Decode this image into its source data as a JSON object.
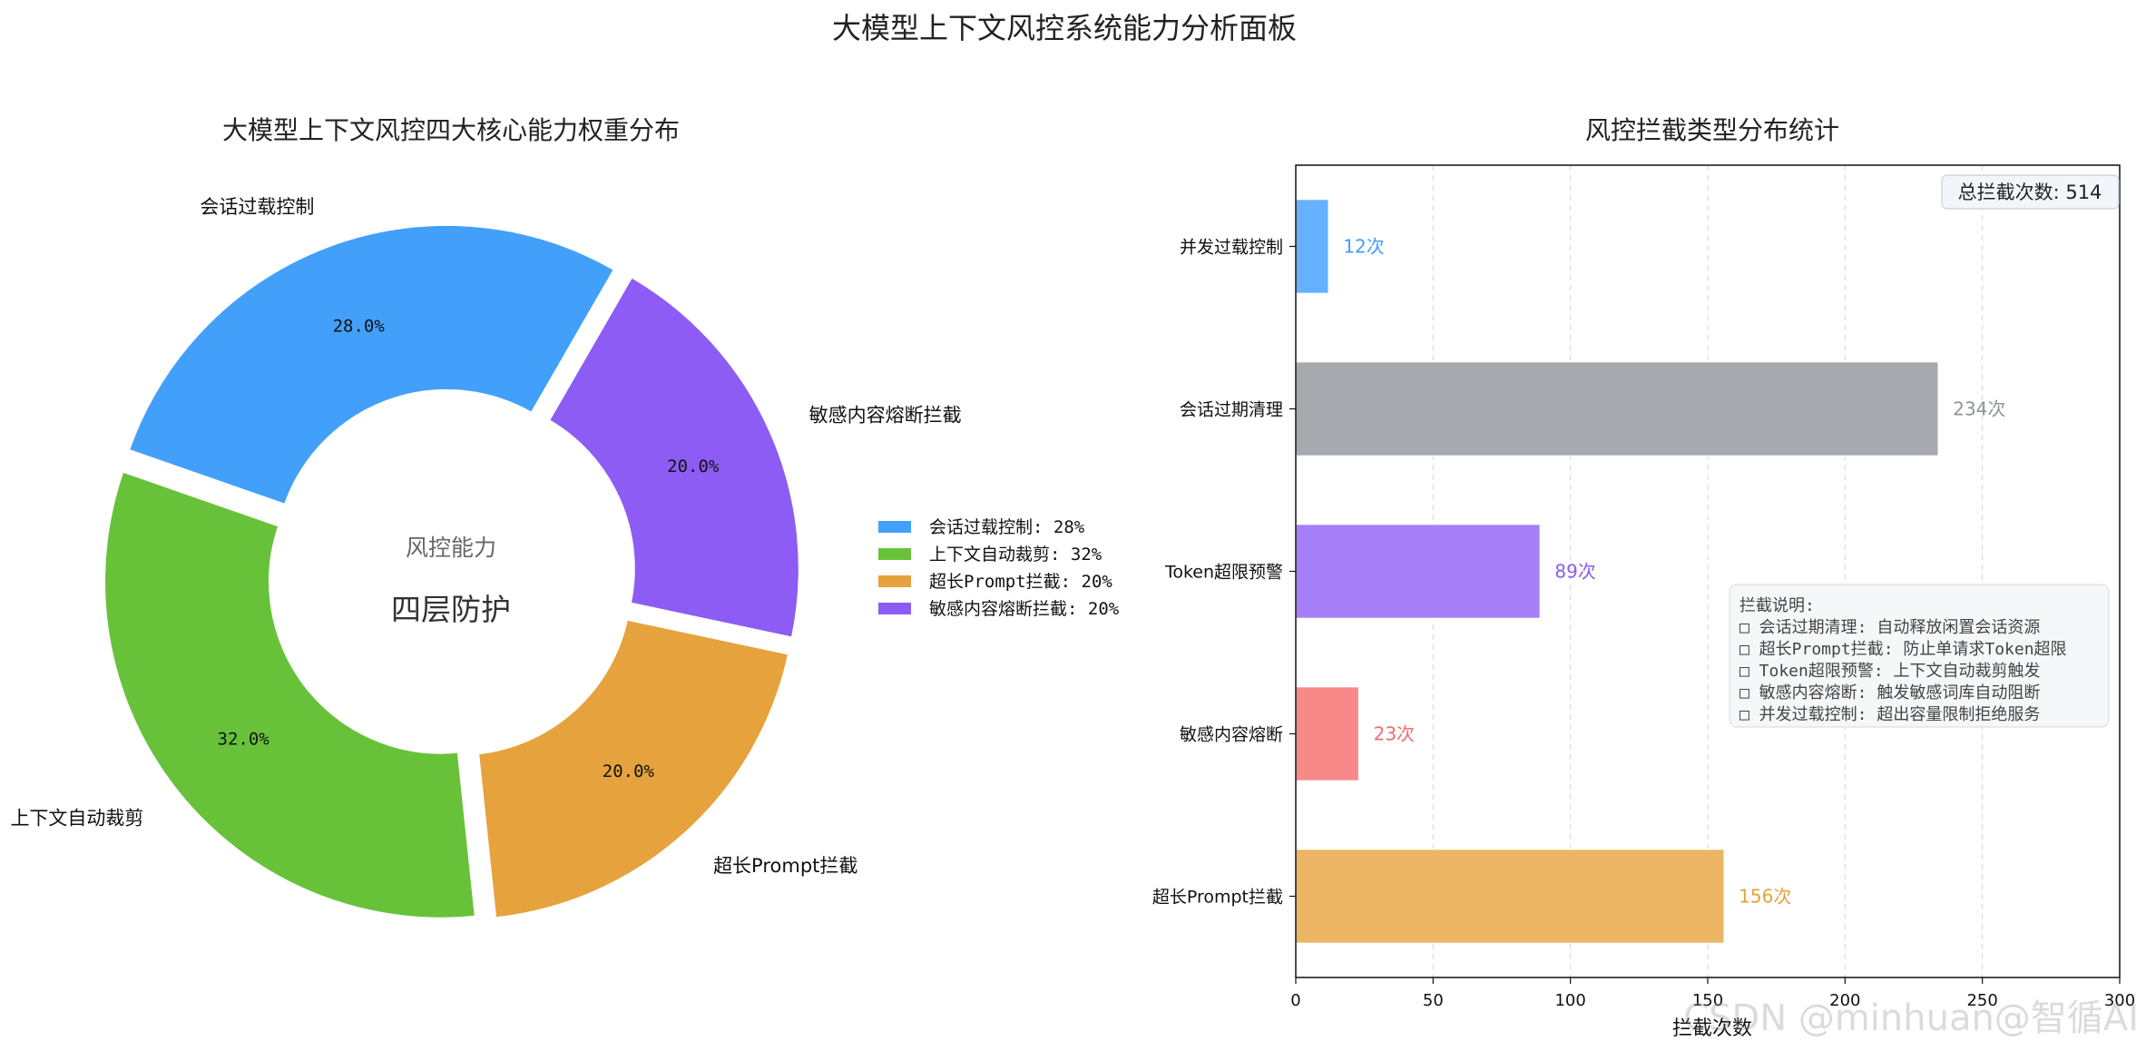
{
  "page_title": "大模型上下文风控系统能力分析面板",
  "chart_data": [
    {
      "type": "pie",
      "variant": "donut",
      "title": "大模型上下文风控四大核心能力权重分布",
      "center_text": {
        "line1": "风控能力",
        "line2": "四层防护"
      },
      "slices": [
        {
          "label": "会话过载控制",
          "value": 28,
          "pct_label": "28.0%",
          "color": "#42a0fb"
        },
        {
          "label": "上下文自动裁剪",
          "value": 32,
          "pct_label": "32.0%",
          "color": "#67c23a"
        },
        {
          "label": "超长Prompt拦截",
          "value": 20,
          "pct_label": "20.0%",
          "color": "#e6a23c"
        },
        {
          "label": "敏感内容熔断拦截",
          "value": 20,
          "pct_label": "20.0%",
          "color": "#8c5cf5"
        }
      ],
      "legend": {
        "placement": "right",
        "entries": [
          "会话过载控制: 28%",
          "上下文自动裁剪: 32%",
          "超长Prompt拦截: 20%",
          "敏感内容熔断拦截: 20%"
        ]
      }
    },
    {
      "type": "bar",
      "orientation": "horizontal",
      "title": "风控拦截类型分布统计",
      "xlabel": "拦截次数",
      "xlim": [
        0,
        300
      ],
      "xticks": [
        "0",
        "50",
        "100",
        "150",
        "200",
        "250",
        "300"
      ],
      "grid": "vertical dashed",
      "categories": [
        "并发过载控制",
        "会话过期清理",
        "Token超限预警",
        "敏感内容熔断",
        "超长Prompt拦截"
      ],
      "values": [
        12,
        234,
        89,
        23,
        156
      ],
      "value_labels": [
        "12次",
        "234次",
        "89次",
        "23次",
        "156次"
      ],
      "colors": [
        "#66b1ff",
        "#a6a9ad",
        "#a47ff7",
        "#f78989",
        "#ebb563"
      ],
      "label_colors": [
        "#409eff",
        "#909399",
        "#8c5cf5",
        "#f56c6c",
        "#e6a23c"
      ],
      "total_box": "总拦截次数: 514",
      "notes": {
        "title": "拦截说明:",
        "items": [
          "□ 会话过期清理: 自动释放闲置会话资源",
          "□ 超长Prompt拦截: 防止单请求Token超限",
          "□ Token超限预警: 上下文自动裁剪触发",
          "□ 敏感内容熔断: 触发敏感词库自动阻断",
          "□ 并发过载控制: 超出容量限制拒绝服务"
        ]
      }
    }
  ],
  "watermark": "CSDN @minhuan@智循AI"
}
